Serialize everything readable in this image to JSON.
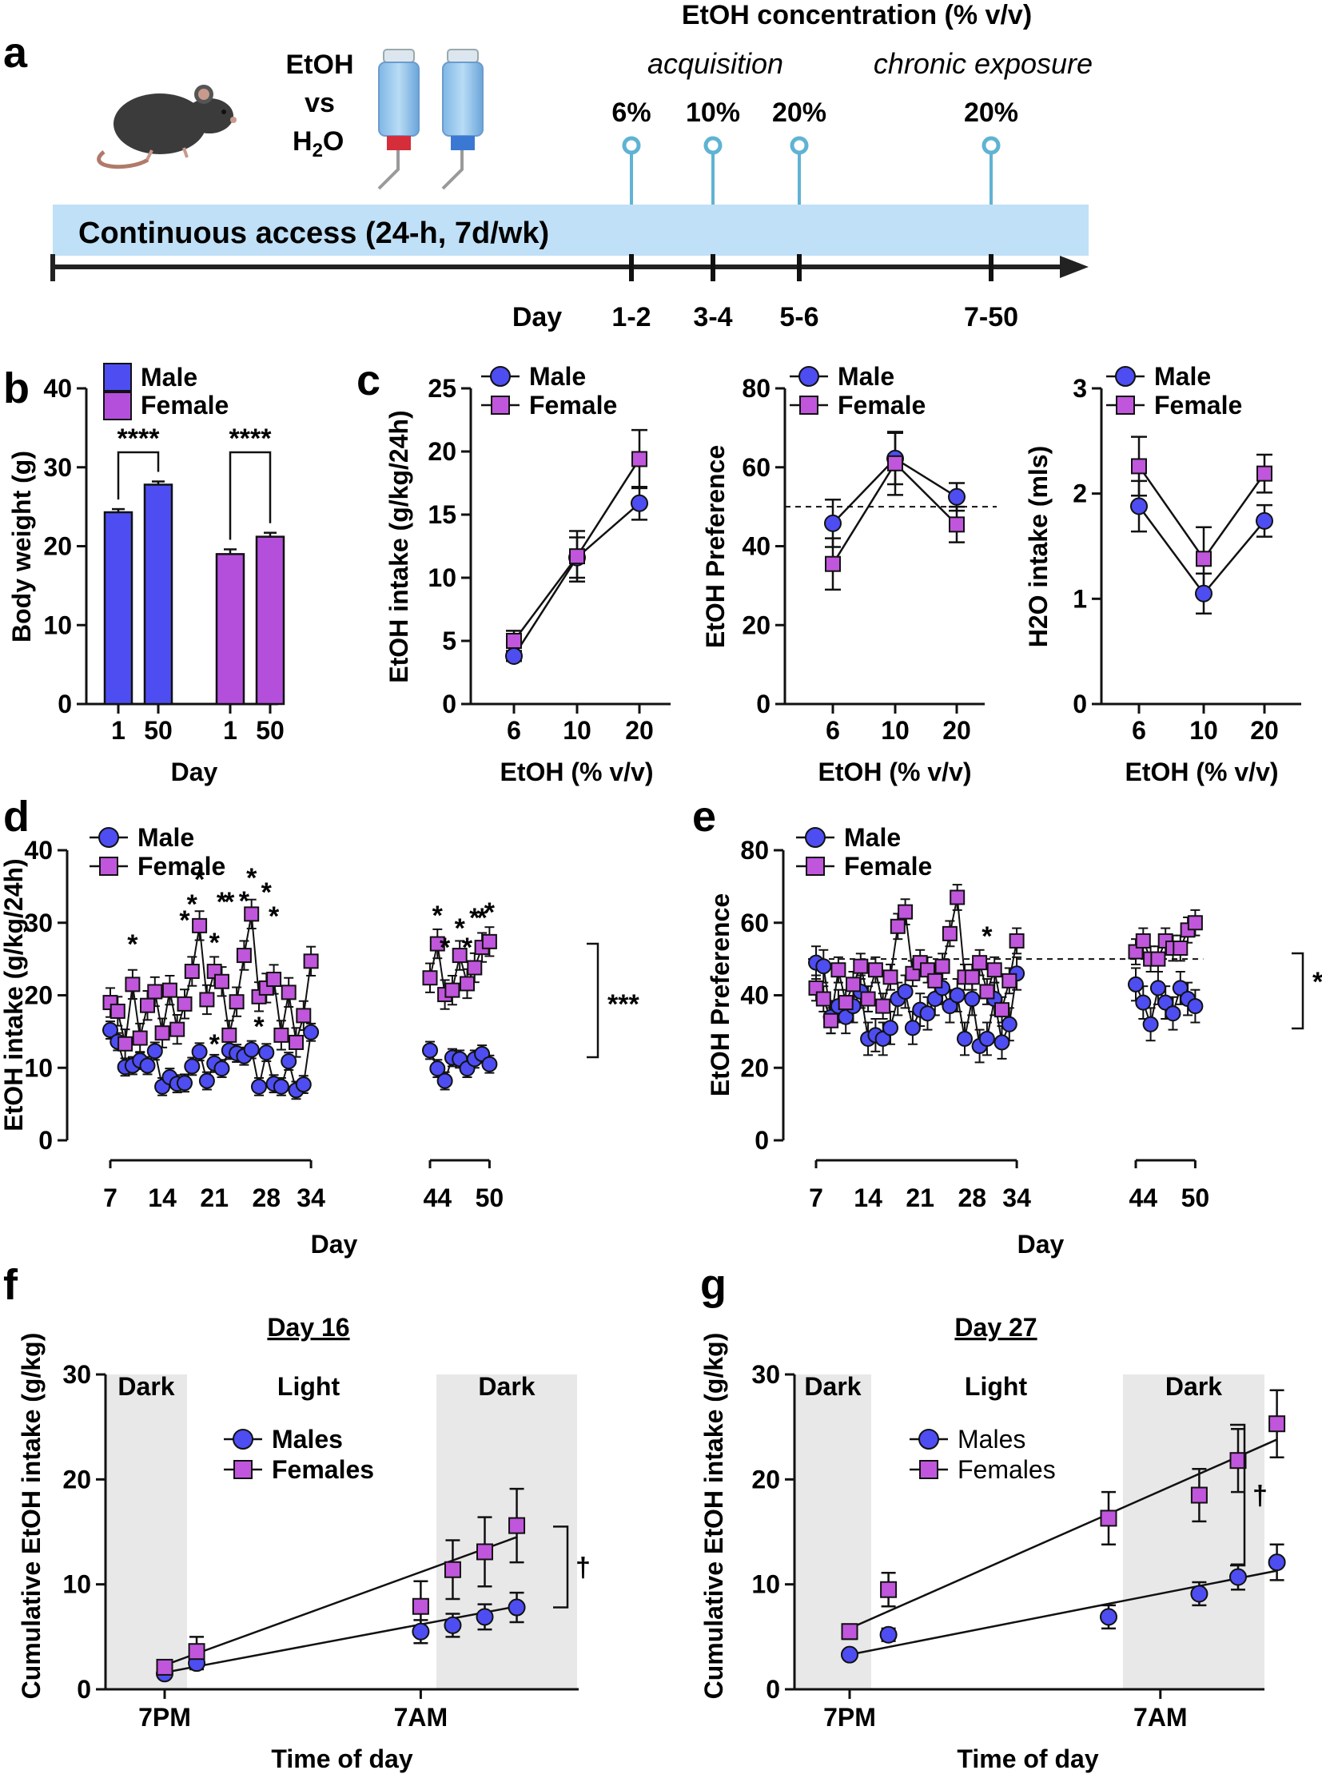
{
  "colors": {
    "male": "#4d4df2",
    "female": "#c056dc",
    "timeline_bar": "#bfe0f7",
    "marker_line": "#5fb3d3",
    "shade": "#e8e8e8",
    "male_bar": "#4d4df2",
    "female_bar": "#b44fdc"
  },
  "panel_a": {
    "label": "a",
    "bottle_labels": {
      "etoh": "EtOH",
      "vs": "vs",
      "h2o": "H",
      "h2o_sub": "2",
      "h2o_end": "O"
    },
    "header": "EtOH concentration (% v/v)",
    "phase_acq": "acquisition",
    "phase_chronic": "chronic exposure",
    "bar_text": "Continuous access (24-h, 7d/wk)",
    "day_label": "Day",
    "markers": [
      {
        "conc": "6%",
        "days": "1-2"
      },
      {
        "conc": "10%",
        "days": "3-4"
      },
      {
        "conc": "20%",
        "days": "5-6"
      },
      {
        "conc": "20%",
        "days": "7-50"
      }
    ],
    "icons": [
      "mouse-icon",
      "bottle-icon"
    ]
  },
  "chart_data": [
    {
      "id": "b",
      "label": "b",
      "type": "bar",
      "categories": [
        "1",
        "50",
        "1",
        "50"
      ],
      "groups": [
        "Male",
        "Male",
        "Female",
        "Female"
      ],
      "values": [
        24.3,
        27.8,
        19.0,
        21.2
      ],
      "errors": [
        0.4,
        0.4,
        0.6,
        0.5
      ],
      "ylabel": "Body weight (g)",
      "xlabel": "Day",
      "ylim": [
        0,
        40
      ],
      "yticks": [
        0,
        10,
        20,
        30,
        40
      ],
      "legend": [
        "Male",
        "Female"
      ],
      "significance": [
        "****",
        "****"
      ]
    },
    {
      "id": "c1",
      "label": "c",
      "type": "line",
      "x": [
        6,
        10,
        20
      ],
      "xticks": [
        "6",
        "10",
        "20"
      ],
      "series": [
        {
          "name": "Male",
          "values": [
            3.8,
            11.6,
            15.9
          ],
          "errors": [
            0.4,
            1.6,
            1.3
          ]
        },
        {
          "name": "Female",
          "values": [
            5.0,
            11.7,
            19.4
          ],
          "errors": [
            0.8,
            2.0,
            2.3
          ]
        }
      ],
      "ylabel": "EtOH intake (g/kg/24h)",
      "xlabel": "EtOH (% v/v)",
      "ylim": [
        0,
        25
      ],
      "yticks": [
        0,
        5,
        10,
        15,
        20,
        25
      ]
    },
    {
      "id": "c2",
      "type": "line",
      "x": [
        6,
        10,
        20
      ],
      "xticks": [
        "6",
        "10",
        "20"
      ],
      "series": [
        {
          "name": "Male",
          "values": [
            45.8,
            62.2,
            52.5
          ],
          "errors": [
            6.0,
            6.5,
            3.5
          ]
        },
        {
          "name": "Female",
          "values": [
            35.5,
            61.0,
            45.5
          ],
          "errors": [
            6.5,
            8.0,
            4.5
          ]
        }
      ],
      "ylabel": "EtOH Preference",
      "xlabel": "EtOH (% v/v)",
      "ylim": [
        0,
        80
      ],
      "yticks": [
        0,
        20,
        40,
        60,
        80
      ],
      "reference_line": 50
    },
    {
      "id": "c3",
      "type": "line",
      "x": [
        6,
        10,
        20
      ],
      "xticks": [
        "6",
        "10",
        "20"
      ],
      "series": [
        {
          "name": "Male",
          "values": [
            1.88,
            1.05,
            1.74
          ],
          "errors": [
            0.24,
            0.19,
            0.15
          ]
        },
        {
          "name": "Female",
          "values": [
            2.26,
            1.38,
            2.19
          ],
          "errors": [
            0.28,
            0.3,
            0.18
          ]
        }
      ],
      "ylabel": "H2O intake (mls)",
      "xlabel": "EtOH (% v/v)",
      "ylim": [
        0,
        3
      ],
      "yticks": [
        0,
        1,
        2,
        3
      ]
    },
    {
      "id": "d",
      "label": "d",
      "type": "line",
      "ylabel": "EtOH intake (g/kg/24h)",
      "xlabel": "Day",
      "ylim": [
        0,
        40
      ],
      "yticks": [
        0,
        10,
        20,
        30,
        40
      ],
      "segments": [
        {
          "x_start": 7,
          "x_end": 34,
          "xticks": [
            "7",
            "14",
            "21",
            "28",
            "34"
          ]
        },
        {
          "x_start": 43,
          "x_end": 50,
          "xticks": [
            "44",
            "50"
          ]
        }
      ],
      "series": [
        {
          "name": "Male",
          "seg1": [
            15.2,
            13.6,
            10.1,
            10.3,
            11.0,
            10.3,
            12.3,
            7.4,
            8.7,
            7.8,
            7.9,
            10.2,
            12.2,
            8.2,
            10.6,
            9.9,
            12.4,
            12.0,
            11.6,
            12.5,
            7.4,
            12.1,
            7.8,
            7.4,
            10.9,
            6.9,
            7.7,
            14.9
          ],
          "seg2": [
            12.4,
            9.9,
            8.2,
            11.4,
            11.2,
            9.9,
            11.2,
            11.9,
            10.5
          ],
          "err": 1.2
        },
        {
          "name": "Female",
          "seg1": [
            19.0,
            17.8,
            13.3,
            21.5,
            14.1,
            18.6,
            20.5,
            14.8,
            20.7,
            15.3,
            18.8,
            23.3,
            29.6,
            19.4,
            23.3,
            21.9,
            14.5,
            19.1,
            25.5,
            31.2,
            19.8,
            21.0,
            22.2,
            14.5,
            20.4,
            13.5,
            17.2,
            24.7
          ],
          "seg2": [
            22.4,
            27.1,
            20.1,
            20.7,
            25.5,
            21.6,
            23.8,
            26.6,
            27.4
          ],
          "err": 2.0
        }
      ],
      "stars_seg1": [
        "*",
        "*",
        "*",
        "*",
        "*",
        "*",
        "*",
        "*",
        "*",
        "*",
        "*",
        "*",
        "*"
      ],
      "stars_seg2": [
        "*",
        "*",
        "*",
        "*",
        "*",
        "*",
        "*"
      ],
      "significance": "***",
      "legend": [
        "Male",
        "Female"
      ]
    },
    {
      "id": "e",
      "label": "e",
      "type": "line",
      "ylabel": "EtOH Preference",
      "xlabel": "Day",
      "ylim": [
        0,
        80
      ],
      "yticks": [
        0,
        20,
        40,
        60,
        80
      ],
      "reference_line": 50,
      "segments": [
        {
          "x_start": 7,
          "x_end": 34,
          "xticks": [
            "7",
            "14",
            "21",
            "28",
            "34"
          ]
        },
        {
          "x_start": 43,
          "x_end": 50,
          "xticks": [
            "44",
            "50"
          ]
        }
      ],
      "series": [
        {
          "name": "Male",
          "seg1": [
            49,
            48,
            34,
            37,
            34,
            37,
            41,
            28,
            29,
            28,
            31,
            39,
            41,
            31,
            36,
            35,
            39,
            42,
            37,
            40,
            28,
            39,
            26,
            28,
            39,
            27,
            32,
            46
          ],
          "seg2": [
            43,
            38,
            32,
            42,
            38,
            35,
            42,
            39,
            37
          ],
          "err": 4.5
        },
        {
          "name": "Female",
          "seg1": [
            42,
            39,
            33,
            47,
            38,
            43,
            48,
            39,
            47,
            37,
            45,
            59,
            63,
            46,
            49,
            47,
            44,
            48,
            57,
            67,
            45,
            45,
            49,
            41,
            47,
            36,
            44,
            55
          ],
          "seg2": [
            52,
            55,
            50,
            50,
            55,
            53,
            53,
            58,
            60
          ],
          "err": 3.5
        }
      ],
      "stars_seg1": [
        "*"
      ],
      "significance": "*",
      "legend": [
        "Male",
        "Female"
      ]
    },
    {
      "id": "f",
      "label": "f",
      "type": "scatter",
      "title": "Day 16",
      "ylabel": "Cumulative EtOH intake (g/kg)",
      "xlabel": "Time of day",
      "ylim": [
        0,
        30
      ],
      "yticks": [
        0,
        10,
        20,
        30
      ],
      "xticks": [
        "7PM",
        "7AM"
      ],
      "x_hours": [
        0,
        1.5,
        12,
        13.5,
        15,
        16.5
      ],
      "regions": [
        "Dark",
        "Light",
        "Dark"
      ],
      "series": [
        {
          "name": "Males",
          "values": [
            1.5,
            2.5,
            5.5,
            6.1,
            6.9,
            7.8
          ],
          "errors": [
            0.4,
            0.6,
            1.1,
            1.1,
            1.2,
            1.4
          ],
          "fit": [
            1.6,
            7.9
          ]
        },
        {
          "name": "Females",
          "values": [
            2.1,
            3.6,
            7.9,
            11.4,
            13.1,
            15.6
          ],
          "errors": [
            0.6,
            1.4,
            2.4,
            2.8,
            3.3,
            3.5
          ],
          "fit": [
            2.3,
            14.5
          ]
        }
      ],
      "significance": "†"
    },
    {
      "id": "g",
      "label": "g",
      "type": "scatter",
      "title": "Day 27",
      "ylabel": "Cumulative EtOH intake (g/kg)",
      "xlabel": "Time of day",
      "ylim": [
        0,
        30
      ],
      "yticks": [
        0,
        10,
        20,
        30
      ],
      "xticks": [
        "7PM",
        "7AM"
      ],
      "x_hours": [
        0,
        1.5,
        10,
        13.5,
        15,
        16.5
      ],
      "regions": [
        "Dark",
        "Light",
        "Dark"
      ],
      "series": [
        {
          "name": "Males",
          "values": [
            3.3,
            5.2,
            6.9,
            9.1,
            10.7,
            12.1
          ],
          "errors": [
            0.4,
            0.6,
            1.1,
            1.1,
            1.2,
            1.7
          ],
          "fit": [
            3.3,
            11.3
          ]
        },
        {
          "name": "Females",
          "values": [
            5.5,
            9.5,
            16.3,
            18.5,
            21.8,
            25.3
          ],
          "errors": [
            0.7,
            1.6,
            2.5,
            2.5,
            3.0,
            3.2
          ],
          "fit": [
            5.8,
            23.8
          ]
        }
      ],
      "significance": "†"
    }
  ]
}
